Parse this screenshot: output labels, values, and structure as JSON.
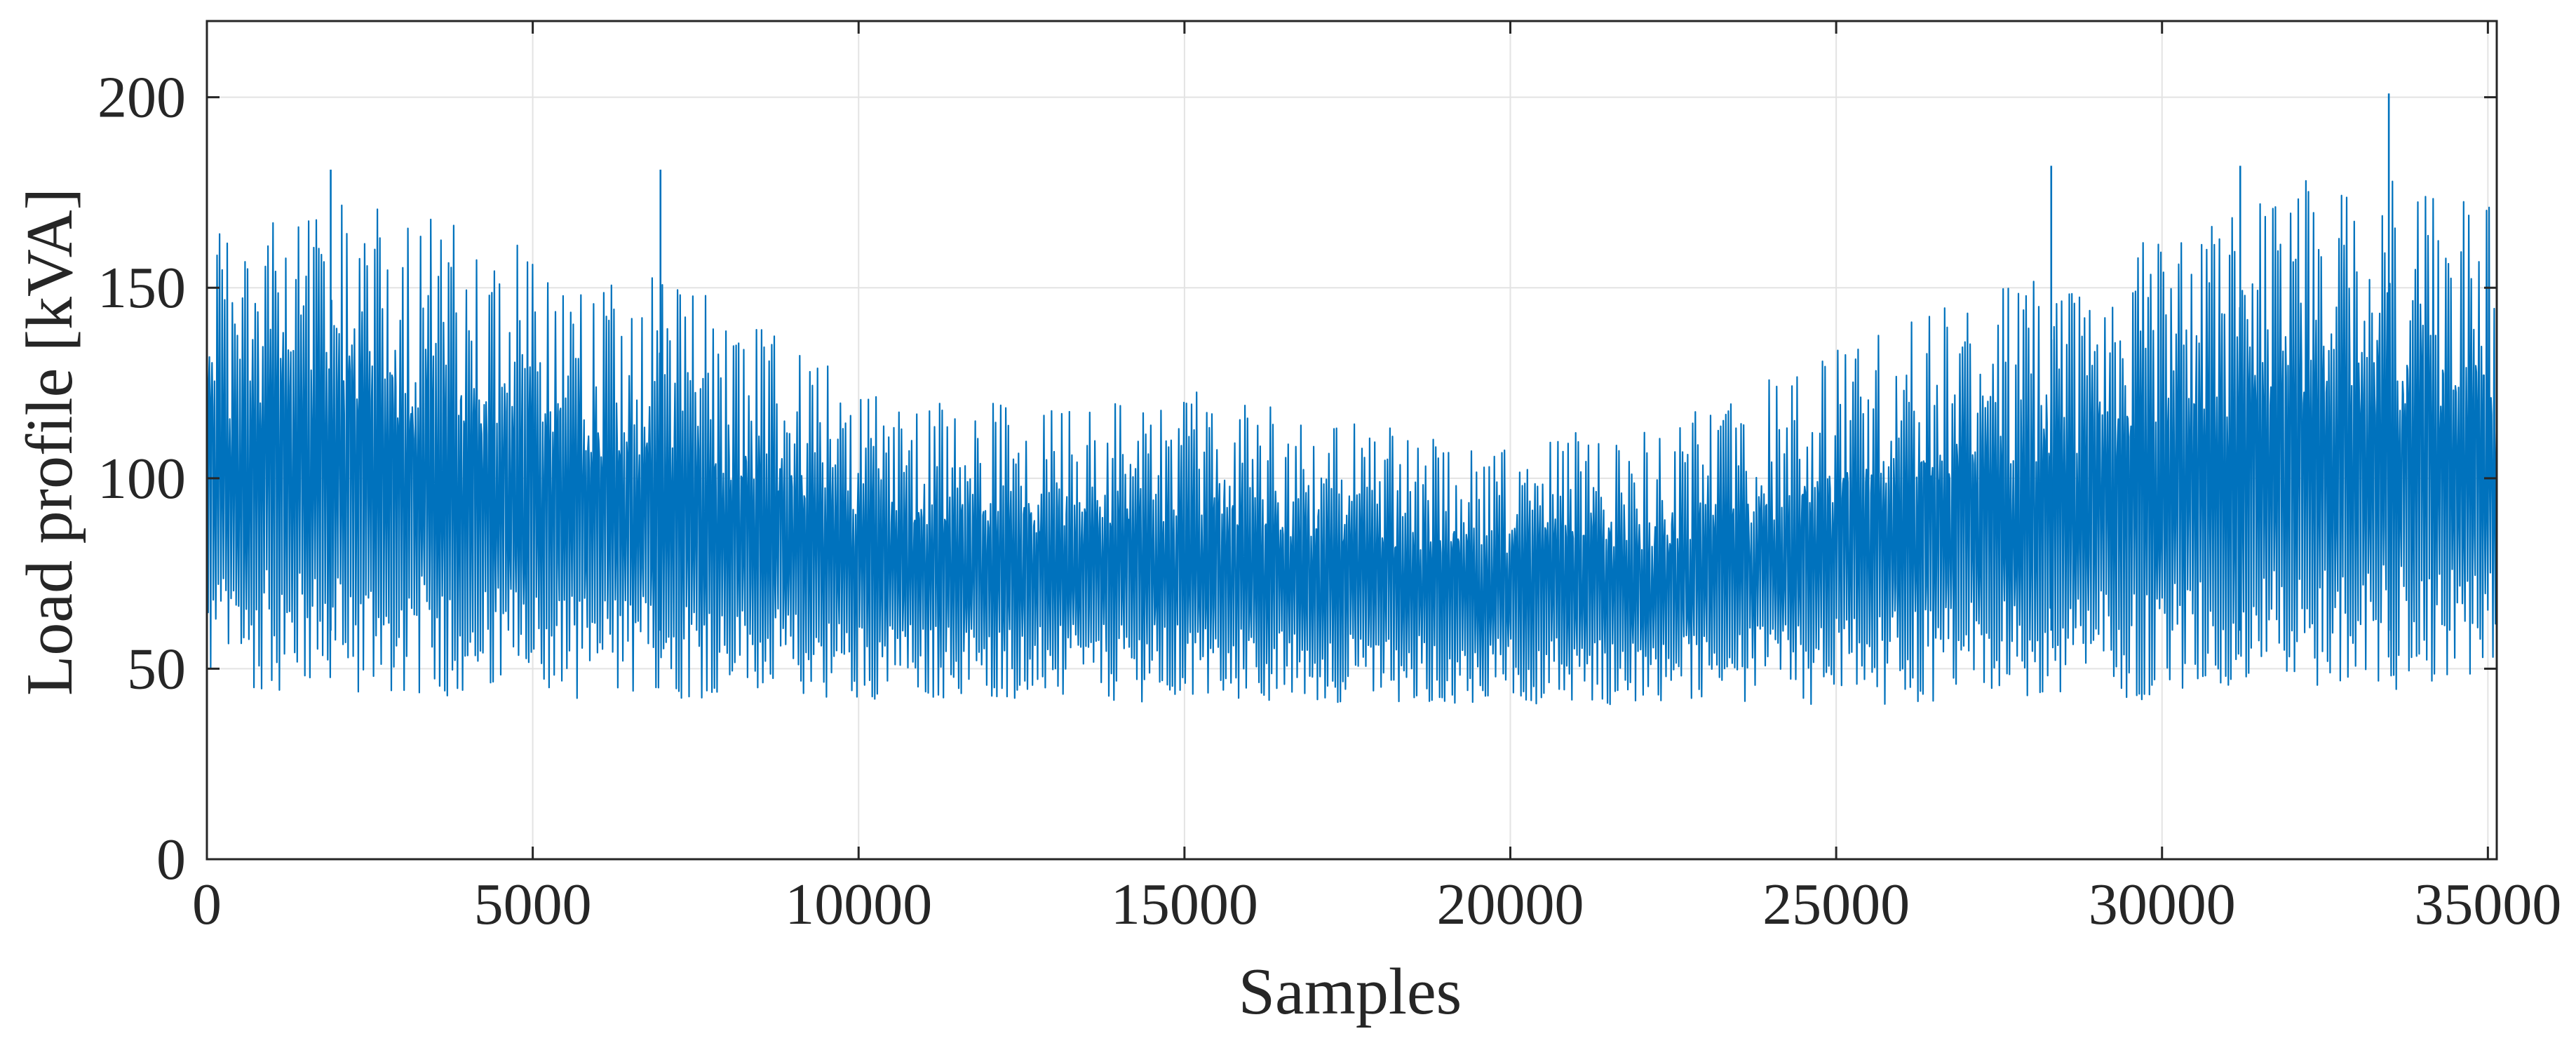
{
  "chart_data": {
    "type": "line",
    "title": "",
    "xlabel": "Samples",
    "ylabel": "Load profile [kVA]",
    "xlim": [
      0,
      35136
    ],
    "ylim": [
      0,
      220
    ],
    "xticks": [
      0,
      5000,
      10000,
      15000,
      20000,
      25000,
      30000,
      35000
    ],
    "yticks": [
      0,
      50,
      100,
      150,
      200
    ],
    "grid": true,
    "legend": "none",
    "colors": {
      "series": "#0072BD",
      "grid": "#e3e3e3",
      "axis": "#262626"
    },
    "series": [
      {
        "description_of_values": "sampled envelope of the load profile (daily min/max oscillation)",
        "x": [
          0,
          2500,
          5000,
          7500,
          10000,
          12500,
          15000,
          17500,
          20000,
          22500,
          25000,
          27500,
          30000,
          32500,
          35136
        ],
        "y_max": [
          170,
          175,
          160,
          150,
          125,
          120,
          125,
          115,
          110,
          115,
          135,
          150,
          165,
          180,
          175
        ],
        "y_min": [
          45,
          43,
          42,
          42,
          42,
          42,
          41,
          41,
          41,
          40,
          40,
          41,
          42,
          43,
          45
        ],
        "notable_peaks": [
          {
            "x": 1900,
            "y": 181
          },
          {
            "x": 6960,
            "y": 181
          },
          {
            "x": 28300,
            "y": 182
          },
          {
            "x": 31200,
            "y": 182
          },
          {
            "x": 33480,
            "y": 201
          }
        ]
      }
    ]
  }
}
